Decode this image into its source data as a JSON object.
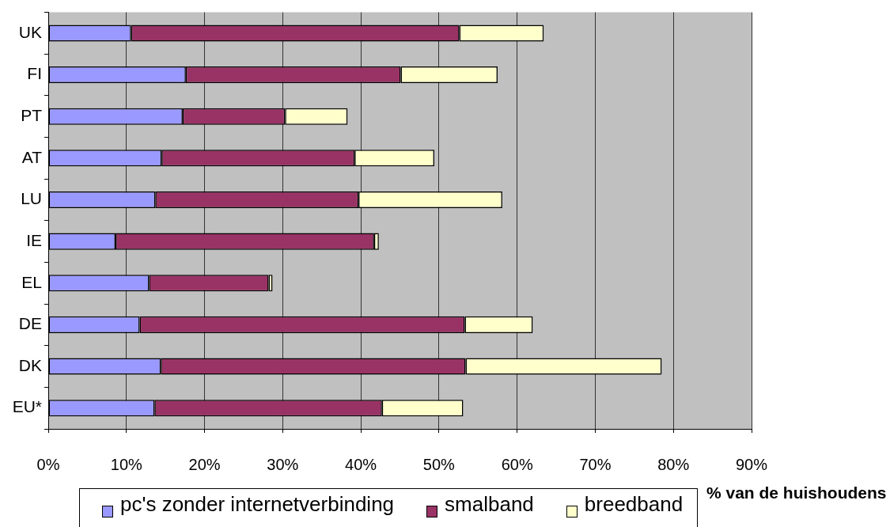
{
  "chart_data": {
    "type": "bar",
    "orientation": "horizontal",
    "stacked": true,
    "categories": [
      "UK",
      "FI",
      "PT",
      "AT",
      "LU",
      "IE",
      "EL",
      "DE",
      "DK",
      "EU*"
    ],
    "series": [
      {
        "name": "pc's zonder internetverbinding",
        "color": "#9999ff",
        "values": [
          10.6,
          17.6,
          17.2,
          14.5,
          13.7,
          8.6,
          12.9,
          11.7,
          14.4,
          13.6
        ]
      },
      {
        "name": "smalband",
        "color": "#993366",
        "values": [
          42.0,
          27.5,
          13.1,
          24.7,
          26.0,
          33.1,
          15.3,
          41.6,
          39.0,
          29.1
        ]
      },
      {
        "name": "breedband",
        "color": "#ffffcc",
        "values": [
          10.8,
          12.4,
          8.0,
          10.2,
          18.4,
          0.6,
          0.5,
          8.7,
          25.1,
          10.4
        ]
      }
    ],
    "xlabel": "% van de huishoudens",
    "xlim": [
      0,
      90
    ],
    "xticks": [
      {
        "value": 0,
        "label": "0%"
      },
      {
        "value": 10,
        "label": "10%"
      },
      {
        "value": 20,
        "label": "20%"
      },
      {
        "value": 30,
        "label": "30%"
      },
      {
        "value": 40,
        "label": "40%"
      },
      {
        "value": 50,
        "label": "50%"
      },
      {
        "value": 60,
        "label": "60%"
      },
      {
        "value": 70,
        "label": "70%"
      },
      {
        "value": 80,
        "label": "80%"
      },
      {
        "value": 90,
        "label": "90%"
      }
    ],
    "grid": "x",
    "legend": "bottom"
  }
}
